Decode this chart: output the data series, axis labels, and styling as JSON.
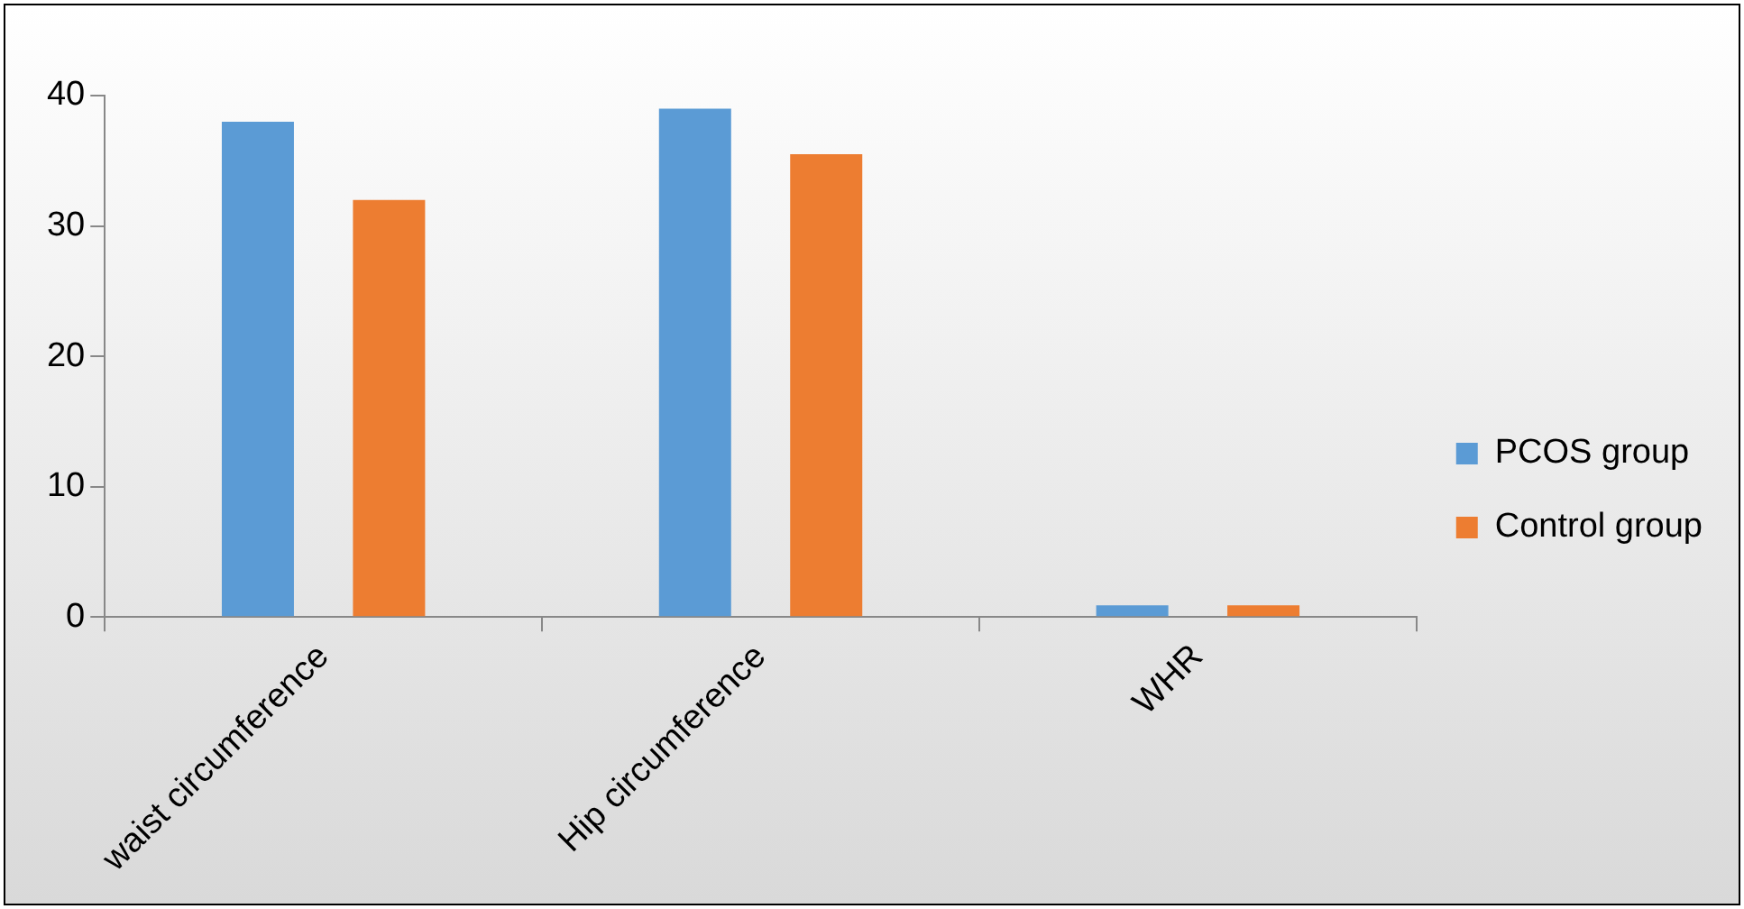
{
  "chart_data": {
    "type": "bar",
    "categories": [
      "waist circumference",
      "Hip circumference",
      "WHR"
    ],
    "series": [
      {
        "name": "PCOS group",
        "color": "#5b9bd5",
        "values": [
          38,
          39,
          0.9
        ]
      },
      {
        "name": "Control group",
        "color": "#ed7d31",
        "values": [
          32,
          35.5,
          0.9
        ]
      }
    ],
    "ylim": [
      0,
      40
    ],
    "yticks": [
      0,
      10,
      20,
      30,
      40
    ],
    "grid": false,
    "legend": "right"
  }
}
